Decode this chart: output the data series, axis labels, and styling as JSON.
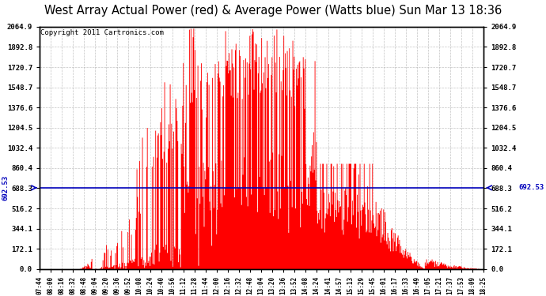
{
  "title": "West Array Actual Power (red) & Average Power (Watts blue) Sun Mar 13 18:36",
  "copyright": "Copyright 2011 Cartronics.com",
  "avg_power": 692.53,
  "ymax": 2064.9,
  "yticks": [
    0.0,
    172.1,
    344.1,
    516.2,
    688.3,
    860.4,
    1032.4,
    1204.5,
    1376.6,
    1548.7,
    1720.7,
    1892.8,
    2064.9
  ],
  "fill_color": "#FF0000",
  "line_color": "#0000BB",
  "bg_color": "#FFFFFF",
  "grid_color": "#AAAAAA",
  "title_fontsize": 10.5,
  "copyright_fontsize": 6.5,
  "tick_fontsize": 6.5,
  "xtick_labels": [
    "07:44",
    "08:00",
    "08:16",
    "08:32",
    "08:48",
    "09:04",
    "09:20",
    "09:36",
    "09:52",
    "10:08",
    "10:24",
    "10:40",
    "10:56",
    "11:12",
    "11:28",
    "11:44",
    "12:00",
    "12:16",
    "12:32",
    "12:48",
    "13:04",
    "13:20",
    "13:36",
    "13:52",
    "14:08",
    "14:24",
    "14:41",
    "14:57",
    "15:13",
    "15:29",
    "15:45",
    "16:01",
    "16:17",
    "16:33",
    "16:49",
    "17:05",
    "17:21",
    "17:37",
    "17:53",
    "18:09",
    "18:25"
  ]
}
